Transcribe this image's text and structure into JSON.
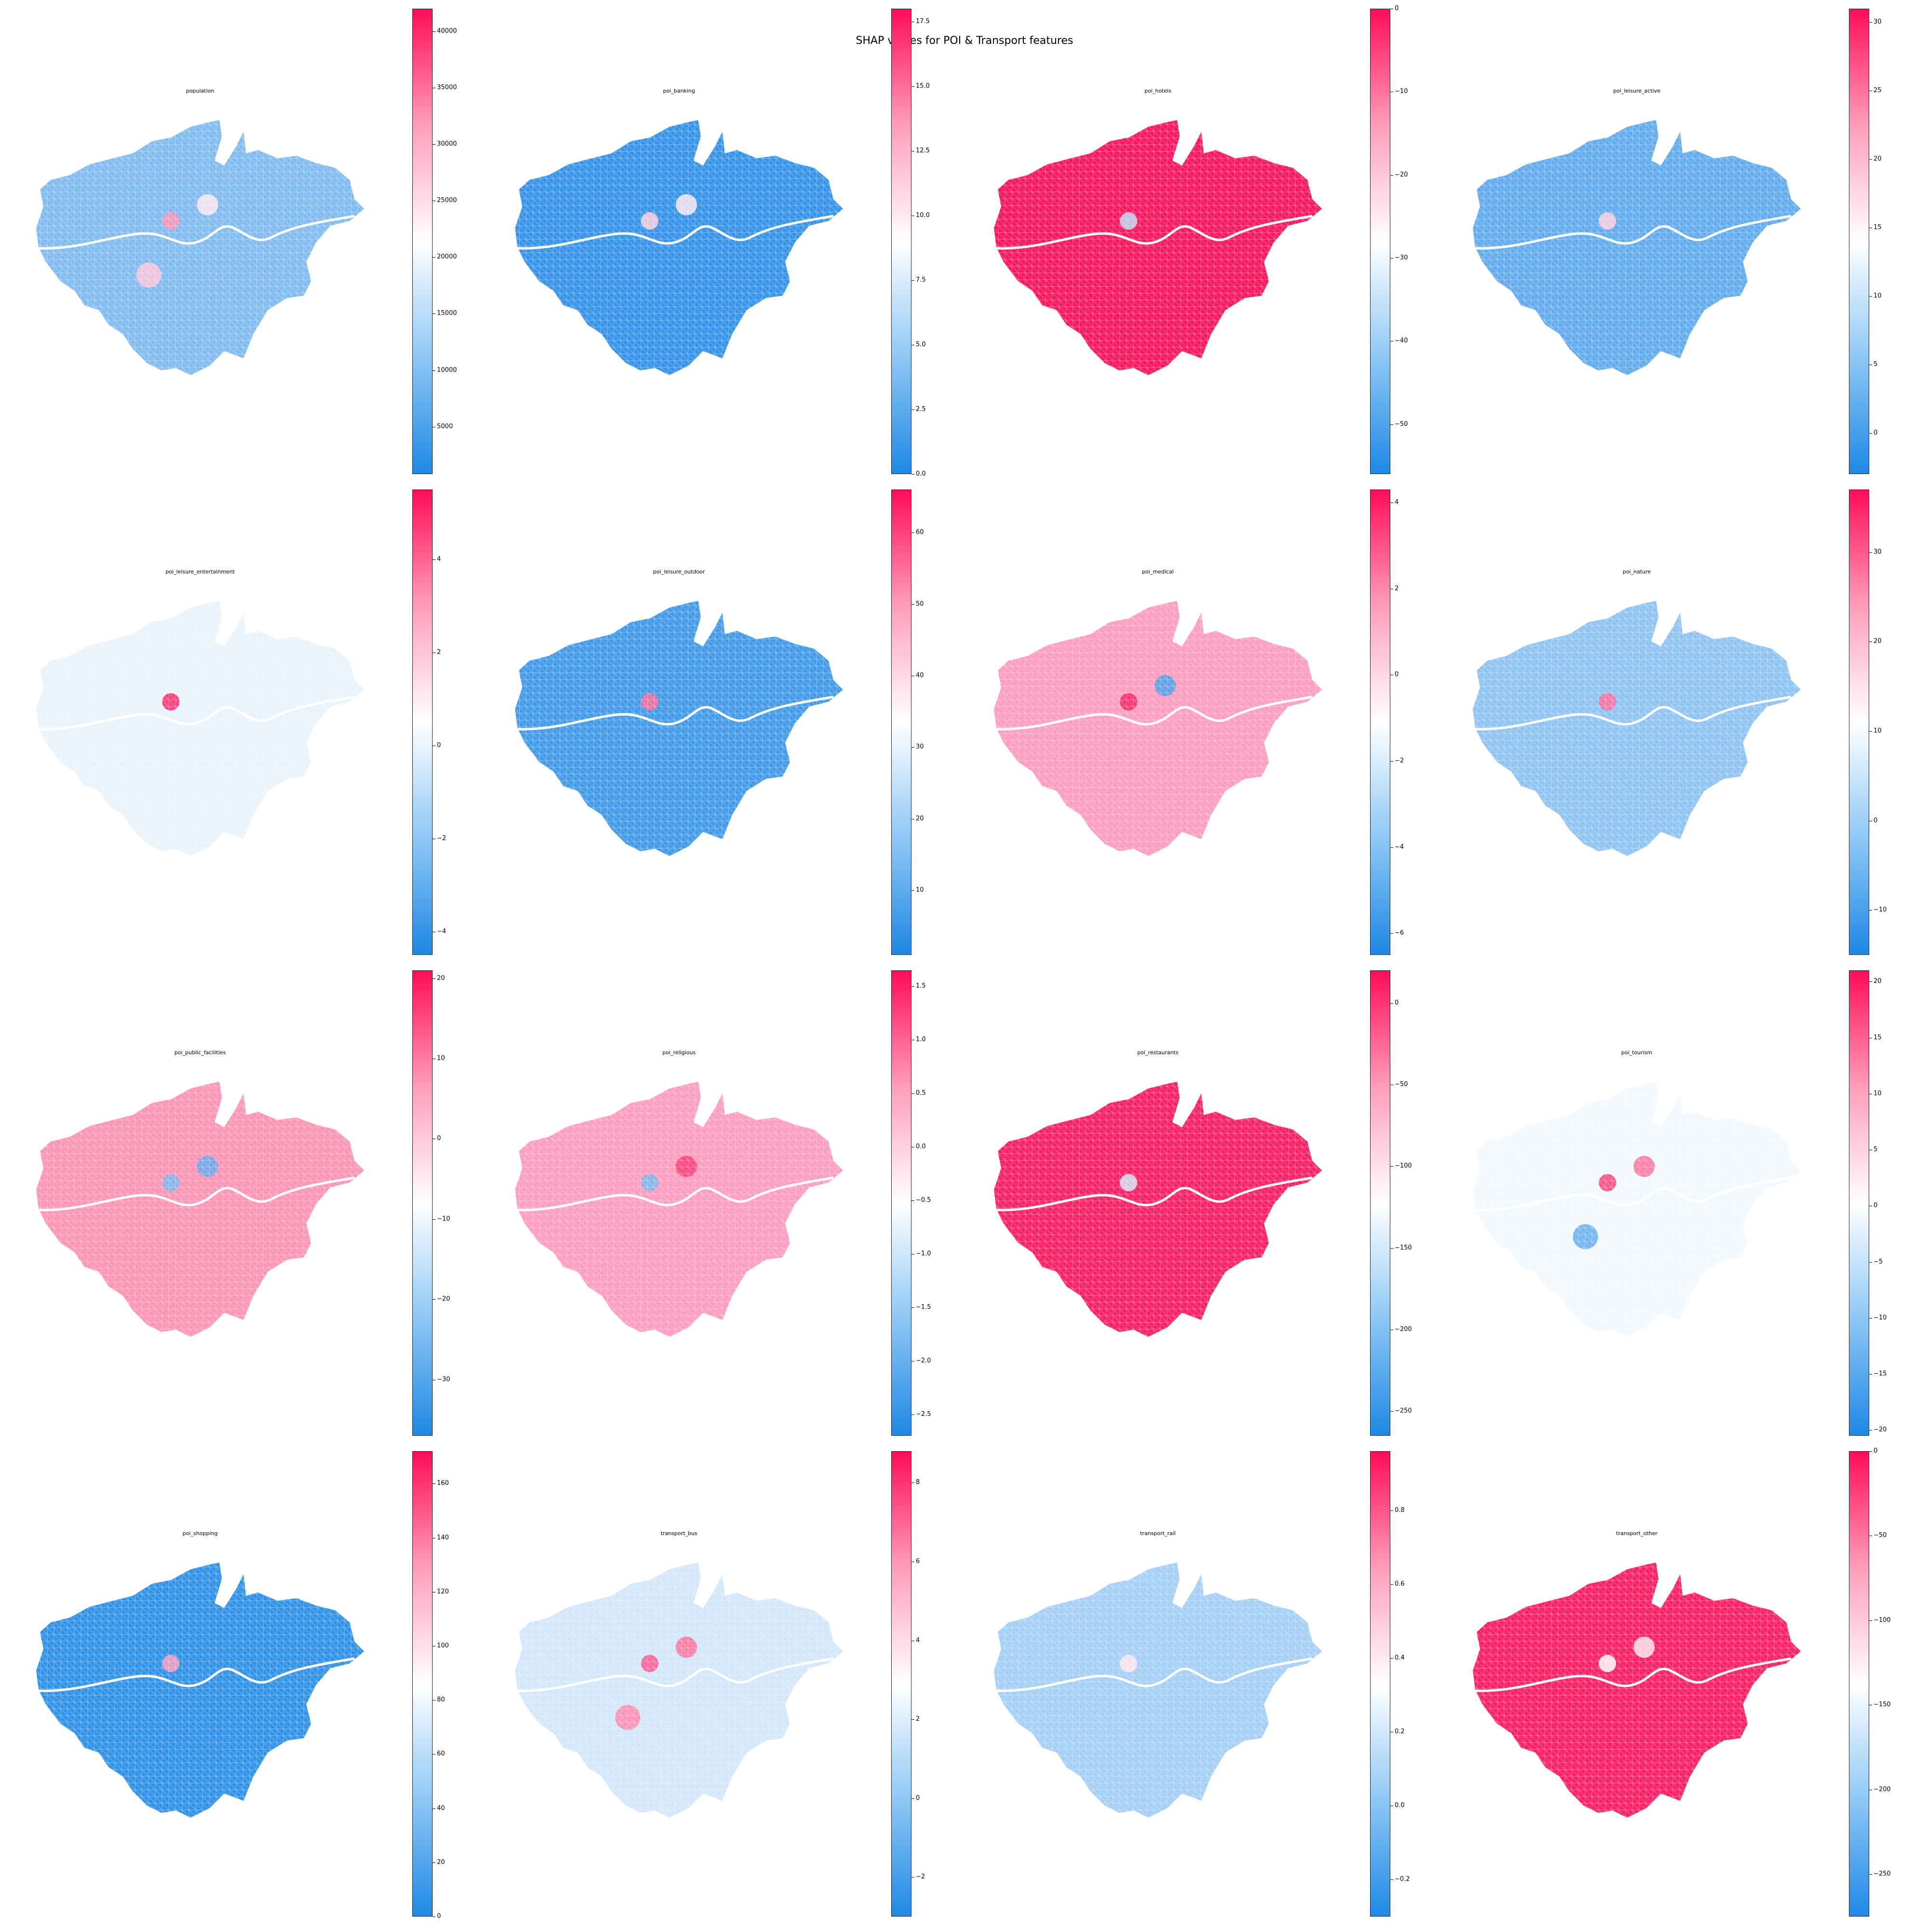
{
  "figure_title": "SHAP values for POI & Transport features",
  "colormap": {
    "low": "#1e88e5",
    "mid": "#ffffff",
    "high": "#ff0d57"
  },
  "panels": [
    {
      "title": "population",
      "ticks": [
        "40000",
        "35000",
        "30000",
        "25000",
        "20000",
        "15000",
        "10000",
        "5000"
      ],
      "vmin": 800,
      "vmax": 42000,
      "tick_values": [
        40000,
        35000,
        30000,
        25000,
        20000,
        15000,
        10000,
        5000
      ],
      "dominant_level": 0.22,
      "hotspots": [
        0.72,
        0.55,
        0.62
      ]
    },
    {
      "title": "poi_banking",
      "ticks": [
        "17.5",
        "15.0",
        "12.5",
        "10.0",
        "7.5",
        "5.0",
        "2.5",
        "0.0"
      ],
      "vmin": 0,
      "vmax": 18,
      "tick_values": [
        17.5,
        15,
        12.5,
        10,
        7.5,
        5,
        2.5,
        0
      ],
      "dominant_level": 0.05,
      "hotspots": [
        0.6,
        0.55
      ]
    },
    {
      "title": "poi_hotels",
      "ticks": [
        "0",
        "−10",
        "−20",
        "−30",
        "−40",
        "−50"
      ],
      "vmin": -56,
      "vmax": 0,
      "tick_values": [
        0,
        -10,
        -20,
        -30,
        -40,
        -50
      ],
      "dominant_level": 0.98,
      "hotspots": [
        0.35
      ]
    },
    {
      "title": "poi_leisure_active",
      "ticks": [
        "30",
        "25",
        "20",
        "15",
        "10",
        "5",
        "0"
      ],
      "vmin": -3,
      "vmax": 31,
      "tick_values": [
        30,
        25,
        20,
        15,
        10,
        5,
        0
      ],
      "dominant_level": 0.15,
      "hotspots": [
        0.6
      ]
    },
    {
      "title": "poi_leisure_entertainment",
      "ticks": [
        "4",
        "2",
        "0",
        "−2",
        "−4"
      ],
      "vmin": -4.5,
      "vmax": 5.5,
      "tick_values": [
        4,
        2,
        0,
        -2,
        -4
      ],
      "dominant_level": 0.45,
      "hotspots": [
        0.95
      ]
    },
    {
      "title": "poi_leisure_outdoor",
      "ticks": [
        "60",
        "50",
        "40",
        "30",
        "20",
        "10"
      ],
      "vmin": 1,
      "vmax": 66,
      "tick_values": [
        60,
        50,
        40,
        30,
        20,
        10
      ],
      "dominant_level": 0.08,
      "hotspots": [
        0.8
      ]
    },
    {
      "title": "poi_medical",
      "ticks": [
        "4",
        "2",
        "0",
        "−2",
        "−4",
        "−6"
      ],
      "vmin": -6.5,
      "vmax": 4.3,
      "tick_values": [
        4,
        2,
        0,
        -2,
        -4,
        -6
      ],
      "dominant_level": 0.7,
      "hotspots": [
        0.95,
        0.1
      ]
    },
    {
      "title": "poi_nature",
      "ticks": [
        "30",
        "20",
        "10",
        "0",
        "−10"
      ],
      "vmin": -15,
      "vmax": 37,
      "tick_values": [
        30,
        20,
        10,
        0,
        -10
      ],
      "dominant_level": 0.25,
      "hotspots": [
        0.8
      ]
    },
    {
      "title": "poi_public_facilities",
      "ticks": [
        "20",
        "10",
        "0",
        "−10",
        "−20",
        "−30"
      ],
      "vmin": -37,
      "vmax": 21,
      "tick_values": [
        20,
        10,
        0,
        -10,
        -20,
        -30
      ],
      "dominant_level": 0.72,
      "hotspots": [
        0.2,
        0.15
      ]
    },
    {
      "title": "poi_religious",
      "ticks": [
        "1.5",
        "1.0",
        "0.5",
        "0.0",
        "−0.5",
        "−1.0",
        "−1.5",
        "−2.0",
        "−2.5"
      ],
      "vmin": -2.7,
      "vmax": 1.65,
      "tick_values": [
        1.5,
        1,
        0.5,
        0,
        -0.5,
        -1,
        -1.5,
        -2,
        -2.5
      ],
      "dominant_level": 0.7,
      "hotspots": [
        0.2,
        0.9
      ]
    },
    {
      "title": "poi_restaurants",
      "ticks": [
        "0",
        "−50",
        "−100",
        "−150",
        "−200",
        "−250"
      ],
      "vmin": -265,
      "vmax": 20,
      "tick_values": [
        0,
        -50,
        -100,
        -150,
        -200,
        -250
      ],
      "dominant_level": 0.96,
      "hotspots": [
        0.4
      ]
    },
    {
      "title": "poi_tourism",
      "ticks": [
        "20",
        "15",
        "10",
        "5",
        "0",
        "−5",
        "−10",
        "−15",
        "−20"
      ],
      "vmin": -20.5,
      "vmax": 21,
      "tick_values": [
        20,
        15,
        10,
        5,
        0,
        -5,
        -10,
        -15,
        -20
      ],
      "dominant_level": 0.47,
      "hotspots": [
        0.9,
        0.8,
        0.15
      ]
    },
    {
      "title": "poi_shopping",
      "ticks": [
        "160",
        "140",
        "120",
        "100",
        "80",
        "60",
        "40",
        "20",
        "0"
      ],
      "vmin": 0,
      "vmax": 172,
      "tick_values": [
        160,
        140,
        120,
        100,
        80,
        60,
        40,
        20,
        0
      ],
      "dominant_level": 0.04,
      "hotspots": [
        0.7
      ]
    },
    {
      "title": "transport_bus",
      "ticks": [
        "8",
        "6",
        "4",
        "2",
        "0",
        "−2"
      ],
      "vmin": -3,
      "vmax": 8.8,
      "tick_values": [
        8,
        6,
        4,
        2,
        0,
        -2
      ],
      "dominant_level": 0.4,
      "hotspots": [
        0.85,
        0.8,
        0.75
      ]
    },
    {
      "title": "transport_rail",
      "ticks": [
        "0.8",
        "0.6",
        "0.4",
        "0.2",
        "0.0",
        "−0.2"
      ],
      "vmin": -0.3,
      "vmax": 0.96,
      "tick_values": [
        0.8,
        0.6,
        0.4,
        0.2,
        0,
        -0.2
      ],
      "dominant_level": 0.3,
      "hotspots": [
        0.55
      ]
    },
    {
      "title": "transport_other",
      "ticks": [
        "0",
        "−50",
        "−100",
        "−150",
        "−200",
        "−250"
      ],
      "vmin": -275,
      "vmax": 0,
      "tick_values": [
        0,
        -50,
        -100,
        -150,
        -200,
        -250
      ],
      "dominant_level": 0.96,
      "hotspots": [
        0.5,
        0.55
      ]
    }
  ]
}
